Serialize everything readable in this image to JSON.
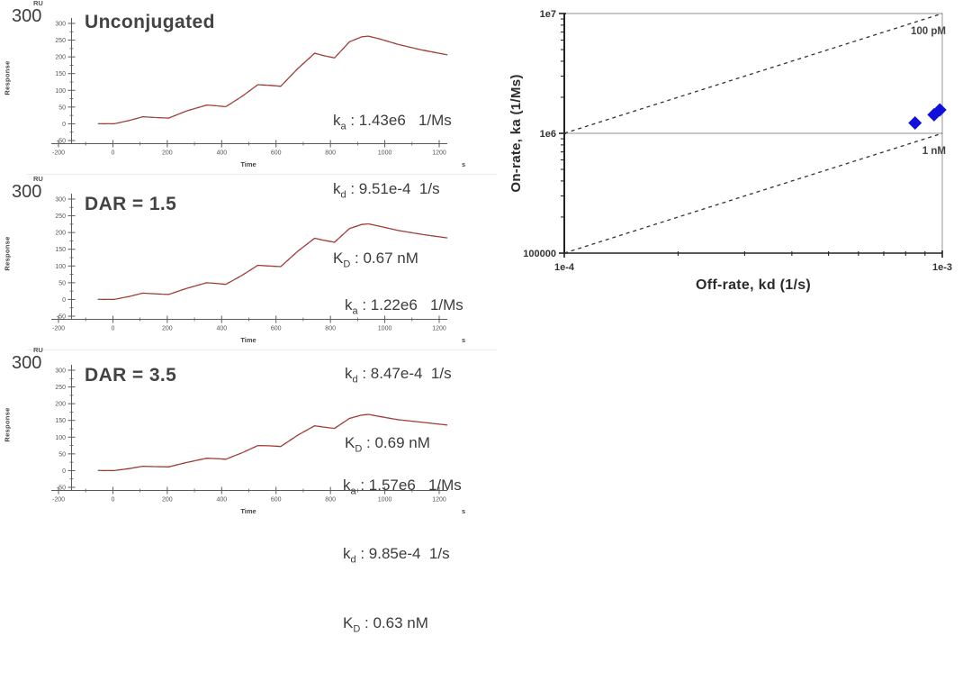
{
  "figure": {
    "description": "SPR single-cycle kinetics sensorgrams with iso-affinity on/off-rate map",
    "accent_color": "#1010dd",
    "curve_color": "#bb2a22",
    "fit_color": "#6b6b6b",
    "text_color": "#3c3c3c"
  },
  "chart_data": [
    {
      "type": "line",
      "title": "Unconjugated",
      "xlabel": "Time",
      "x_unit": "s",
      "ylabel": "Response",
      "y_unit": "RU",
      "y_scale_label": "300",
      "xlim": [
        -200,
        1200
      ],
      "ylim": [
        -50,
        300
      ],
      "xticks": [
        -200,
        0,
        200,
        400,
        600,
        800,
        1000,
        1200
      ],
      "yticks": [
        300,
        250,
        200,
        150,
        100,
        50,
        0,
        -50
      ],
      "curve": [
        [
          -55,
          0
        ],
        [
          5,
          0
        ],
        [
          60,
          10
        ],
        [
          110,
          21
        ],
        [
          150,
          19
        ],
        [
          205,
          17
        ],
        [
          270,
          38
        ],
        [
          345,
          56
        ],
        [
          380,
          54
        ],
        [
          415,
          51
        ],
        [
          475,
          82
        ],
        [
          533,
          117
        ],
        [
          575,
          115
        ],
        [
          617,
          112
        ],
        [
          680,
          165
        ],
        [
          742,
          211
        ],
        [
          775,
          204
        ],
        [
          815,
          197
        ],
        [
          870,
          245
        ],
        [
          915,
          260
        ],
        [
          940,
          262
        ],
        [
          980,
          254
        ],
        [
          1050,
          237
        ],
        [
          1140,
          220
        ],
        [
          1230,
          206
        ]
      ],
      "kinetics": {
        "ka": {
          "base": "k",
          "sub": "a",
          "text": " : 1.43e6   1/Ms"
        },
        "kd": {
          "base": "k",
          "sub": "d",
          "text": " : 9.51e-4  1/s"
        },
        "KD": {
          "base": "K",
          "sub": "D",
          "text": " : 0.67 nM"
        }
      }
    },
    {
      "type": "line",
      "title": "DAR = 1.5",
      "xlabel": "Time",
      "x_unit": "s",
      "ylabel": "Response",
      "y_unit": "RU",
      "y_scale_label": "300",
      "xlim": [
        -200,
        1200
      ],
      "ylim": [
        -50,
        300
      ],
      "xticks": [
        -200,
        0,
        200,
        400,
        600,
        800,
        1000,
        1200
      ],
      "yticks": [
        300,
        250,
        200,
        150,
        100,
        50,
        0,
        -50
      ],
      "curve": [
        [
          -55,
          0
        ],
        [
          5,
          0
        ],
        [
          60,
          9
        ],
        [
          110,
          19
        ],
        [
          150,
          17
        ],
        [
          205,
          15
        ],
        [
          270,
          33
        ],
        [
          345,
          50
        ],
        [
          380,
          48
        ],
        [
          415,
          45
        ],
        [
          475,
          72
        ],
        [
          533,
          102
        ],
        [
          575,
          100
        ],
        [
          617,
          98
        ],
        [
          680,
          144
        ],
        [
          742,
          183
        ],
        [
          775,
          177
        ],
        [
          815,
          171
        ],
        [
          870,
          212
        ],
        [
          915,
          224
        ],
        [
          940,
          226
        ],
        [
          980,
          219
        ],
        [
          1050,
          206
        ],
        [
          1140,
          194
        ],
        [
          1230,
          184
        ]
      ],
      "kinetics": {
        "ka": {
          "base": "k",
          "sub": "a",
          "text": " : 1.22e6   1/Ms"
        },
        "kd": {
          "base": "k",
          "sub": "d",
          "text": " : 8.47e-4  1/s"
        },
        "KD": {
          "base": "K",
          "sub": "D",
          "text": " : 0.69 nM"
        }
      }
    },
    {
      "type": "line",
      "title": "DAR = 3.5",
      "xlabel": "Time",
      "x_unit": "s",
      "ylabel": "Response",
      "y_unit": "RU",
      "y_scale_label": "300",
      "xlim": [
        -200,
        1200
      ],
      "ylim": [
        -50,
        300
      ],
      "xticks": [
        -200,
        0,
        200,
        400,
        600,
        800,
        1000,
        1200
      ],
      "yticks": [
        300,
        250,
        200,
        150,
        100,
        50,
        0,
        -50
      ],
      "curve": [
        [
          -55,
          0
        ],
        [
          5,
          0
        ],
        [
          60,
          6
        ],
        [
          110,
          13
        ],
        [
          150,
          12
        ],
        [
          205,
          11
        ],
        [
          270,
          24
        ],
        [
          345,
          37
        ],
        [
          380,
          36
        ],
        [
          415,
          34
        ],
        [
          475,
          53
        ],
        [
          533,
          75
        ],
        [
          575,
          74
        ],
        [
          617,
          72
        ],
        [
          680,
          106
        ],
        [
          742,
          134
        ],
        [
          775,
          130
        ],
        [
          815,
          126
        ],
        [
          870,
          156
        ],
        [
          915,
          166
        ],
        [
          940,
          168
        ],
        [
          980,
          162
        ],
        [
          1050,
          152
        ],
        [
          1140,
          144
        ],
        [
          1230,
          136
        ]
      ],
      "kinetics": {
        "ka": {
          "base": "k",
          "sub": "a",
          "text": " : 1.57e6   1/Ms"
        },
        "kd": {
          "base": "k",
          "sub": "d",
          "text": " : 9.85e-4  1/s"
        },
        "KD": {
          "base": "K",
          "sub": "D",
          "text": " : 0.63 nM"
        }
      }
    },
    {
      "type": "scatter",
      "xlabel": "Off-rate, kd (1/s)",
      "ylabel": "On-rate, ka (1/Ms)",
      "xlim": [
        0.0001,
        0.001
      ],
      "ylim": [
        100000,
        10000000
      ],
      "x_log": true,
      "y_log": true,
      "xticks": [
        {
          "value": 0.0001,
          "label": "1e-4"
        },
        {
          "value": 0.001,
          "label": "1e-3"
        }
      ],
      "yticks": [
        {
          "value": 10000000,
          "label": "1e7"
        },
        {
          "value": 1000000,
          "label": "1e6"
        },
        {
          "value": 100000,
          "label": "100000"
        }
      ],
      "iso_affinity_lines": [
        {
          "label": "100 pM",
          "from": [
            0.0001,
            1000000
          ],
          "to": [
            0.001,
            10000000
          ]
        },
        {
          "label": "1 nM",
          "from": [
            0.0001,
            100000
          ],
          "to": [
            0.001,
            1000000
          ]
        }
      ],
      "gridlines_y": [
        10000000,
        1000000
      ],
      "points": [
        {
          "kd": 0.000847,
          "ka": 1220000.0
        },
        {
          "kd": 0.000951,
          "ka": 1430000.0
        },
        {
          "kd": 0.000985,
          "ka": 1570000.0
        }
      ],
      "point_color": "#1010dd",
      "marker": "diamond"
    }
  ]
}
